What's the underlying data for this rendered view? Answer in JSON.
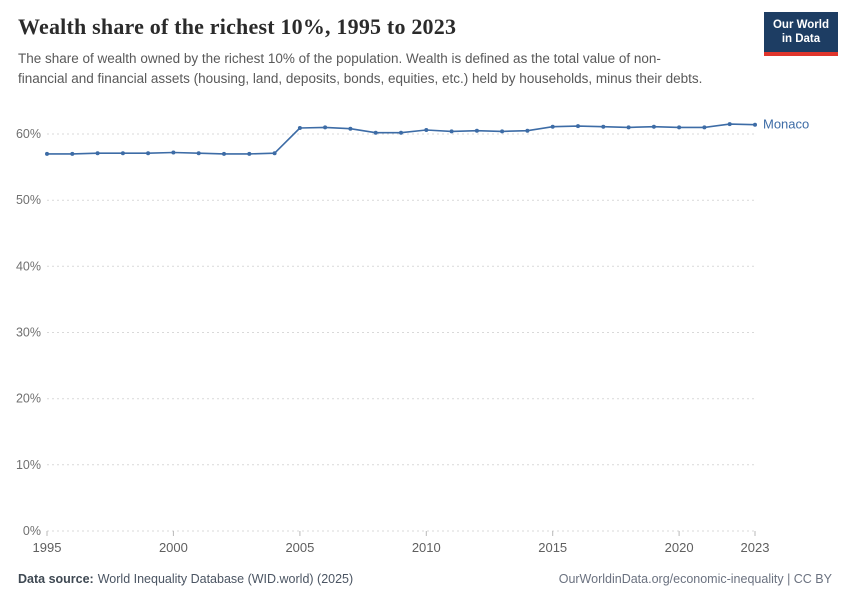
{
  "header": {
    "title": "Wealth share of the richest 10%, 1995 to 2023",
    "subtitle": "The share of wealth owned by the richest 10% of the population. Wealth is defined as the total value of non-financial and financial assets (housing, land, deposits, bonds, equities, etc.) held by households, minus their debts.",
    "logo": {
      "line1": "Our World",
      "line2": "in Data"
    }
  },
  "colors": {
    "line": "#3d6ca6",
    "logo_bg": "#1d3d63",
    "logo_accent": "#e0352c",
    "gridline": "#d9d9d9"
  },
  "chart_data": {
    "type": "line",
    "title": "Wealth share of the richest 10%, 1995 to 2023",
    "xlabel": "",
    "ylabel": "",
    "x": [
      1995,
      1996,
      1997,
      1998,
      1999,
      2000,
      2001,
      2002,
      2003,
      2004,
      2005,
      2006,
      2007,
      2008,
      2009,
      2010,
      2011,
      2012,
      2013,
      2014,
      2015,
      2016,
      2017,
      2018,
      2019,
      2020,
      2021,
      2022,
      2023
    ],
    "series": [
      {
        "name": "Monaco",
        "color": "#3d6ca6",
        "values": [
          57.0,
          57.0,
          57.1,
          57.1,
          57.1,
          57.2,
          57.1,
          57.0,
          57.0,
          57.1,
          60.9,
          61.0,
          60.8,
          60.2,
          60.2,
          60.6,
          60.4,
          60.5,
          60.4,
          60.5,
          61.1,
          61.2,
          61.1,
          61.0,
          61.1,
          61.0,
          61.0,
          61.5,
          61.4
        ]
      }
    ],
    "xlim": [
      1995,
      2023
    ],
    "ylim": [
      0,
      62
    ],
    "xticks": [
      1995,
      2000,
      2005,
      2010,
      2015,
      2020,
      2023
    ],
    "yticks": [
      0,
      10,
      20,
      30,
      40,
      50,
      60
    ],
    "ytick_suffix": "%",
    "grid": "dashed-horizontal",
    "legend": "end-of-line-label"
  },
  "footer": {
    "source_label": "Data source:",
    "source_value": "World Inequality Database (WID.world) (2025)",
    "rights": "OurWorldinData.org/economic-inequality | CC BY"
  }
}
